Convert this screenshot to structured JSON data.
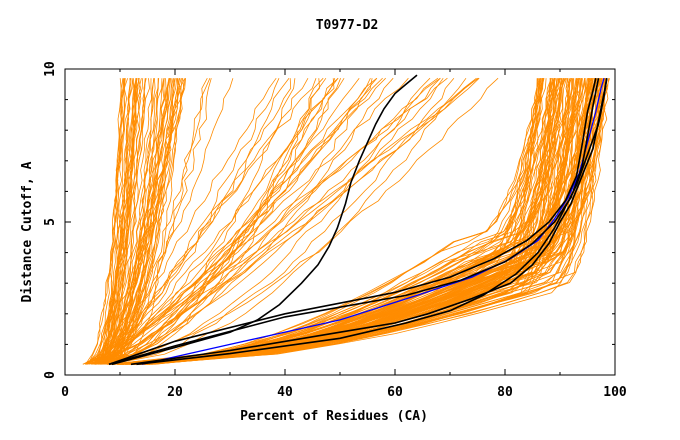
{
  "chart_data": {
    "type": "line",
    "title": "T0977-D2",
    "xlabel": "Percent of Residues (CA)",
    "ylabel": "Distance Cutoff, A",
    "xlim": [
      0,
      100
    ],
    "ylim": [
      0,
      10
    ],
    "x_ticks": [
      0,
      20,
      40,
      60,
      80,
      100
    ],
    "y_ticks": [
      0,
      5,
      10
    ],
    "x_tick_labels": [
      "0",
      "20",
      "40",
      "60",
      "80",
      "100"
    ],
    "y_tick_labels": [
      "0",
      "5",
      "10"
    ],
    "grid": false,
    "legend": "none",
    "colors": {
      "background_curves": "#ff8c00",
      "highlight": "#000000",
      "reference": "#0000ff",
      "axes": "#000000"
    },
    "highlight_series": [
      {
        "color": "#000000",
        "points": [
          [
            8.5,
            0.35
          ],
          [
            20,
            0.9
          ],
          [
            30,
            1.4
          ],
          [
            35,
            1.8
          ],
          [
            39,
            2.3
          ],
          [
            43,
            3.0
          ],
          [
            46,
            3.6
          ],
          [
            48,
            4.2
          ],
          [
            49.5,
            4.8
          ],
          [
            51,
            5.6
          ],
          [
            52,
            6.3
          ],
          [
            53.5,
            7.0
          ],
          [
            55,
            7.6
          ],
          [
            56.5,
            8.2
          ],
          [
            58,
            8.7
          ],
          [
            60,
            9.2
          ],
          [
            62,
            9.5
          ],
          [
            64,
            9.8
          ]
        ]
      },
      {
        "color": "#000000",
        "points": [
          [
            8,
            0.35
          ],
          [
            20,
            1.1
          ],
          [
            40,
            2.0
          ],
          [
            60,
            2.7
          ],
          [
            70,
            3.2
          ],
          [
            78,
            3.8
          ],
          [
            84,
            4.4
          ],
          [
            88,
            5.0
          ],
          [
            91,
            5.7
          ],
          [
            93,
            6.5
          ],
          [
            94,
            7.5
          ],
          [
            95,
            8.6
          ],
          [
            96,
            9.3
          ],
          [
            96.5,
            9.7
          ]
        ]
      },
      {
        "color": "#000000",
        "points": [
          [
            8,
            0.35
          ],
          [
            20,
            0.95
          ],
          [
            40,
            1.9
          ],
          [
            62,
            2.6
          ],
          [
            72,
            3.1
          ],
          [
            80,
            3.7
          ],
          [
            85,
            4.3
          ],
          [
            89,
            5.0
          ],
          [
            92,
            5.8
          ],
          [
            94,
            6.8
          ],
          [
            95,
            7.8
          ],
          [
            96,
            8.8
          ],
          [
            97,
            9.7
          ]
        ]
      },
      {
        "color": "#000000",
        "points": [
          [
            12,
            0.35
          ],
          [
            30,
            0.8
          ],
          [
            50,
            1.4
          ],
          [
            60,
            1.7
          ],
          [
            66,
            2.0
          ],
          [
            74,
            2.5
          ],
          [
            81,
            3.0
          ],
          [
            85,
            3.6
          ],
          [
            88,
            4.3
          ],
          [
            90,
            5.0
          ],
          [
            92,
            5.6
          ],
          [
            94,
            6.5
          ],
          [
            96,
            7.4
          ],
          [
            97,
            8.3
          ],
          [
            98,
            9.2
          ],
          [
            98.5,
            9.7
          ]
        ]
      },
      {
        "color": "#000000",
        "points": [
          [
            13,
            0.35
          ],
          [
            30,
            0.7
          ],
          [
            50,
            1.2
          ],
          [
            62,
            1.7
          ],
          [
            70,
            2.1
          ],
          [
            76,
            2.6
          ],
          [
            82,
            3.3
          ],
          [
            86,
            4.0
          ],
          [
            89,
            4.8
          ],
          [
            91,
            5.5
          ],
          [
            93,
            6.2
          ],
          [
            95,
            7.2
          ],
          [
            97,
            8.2
          ],
          [
            98,
            9.1
          ],
          [
            98.5,
            9.7
          ]
        ]
      }
    ],
    "reference_series": {
      "color": "#0000ff",
      "points": [
        [
          14,
          0.35
        ],
        [
          30,
          1.0
        ],
        [
          50,
          1.8
        ],
        [
          64,
          2.6
        ],
        [
          74,
          3.2
        ],
        [
          81,
          3.8
        ],
        [
          86,
          4.4
        ],
        [
          89,
          5.1
        ],
        [
          91.5,
          5.8
        ],
        [
          93.5,
          6.6
        ],
        [
          95,
          7.6
        ],
        [
          96.5,
          8.6
        ],
        [
          97.5,
          9.4
        ],
        [
          98,
          9.7
        ]
      ]
    },
    "background_curve_groups": [
      {
        "count": 60,
        "x_at_y0.35": [
          3,
          9
        ],
        "x_at_y9.7": [
          10,
          22
        ],
        "description_shape": "steep rise"
      },
      {
        "count": 45,
        "x_at_y0.35": [
          4,
          9
        ],
        "x_at_y9.7": [
          20,
          80
        ],
        "description_shape": "gradual rise"
      },
      {
        "count": 130,
        "x_at_y0.35": [
          8,
          16
        ],
        "x_at_y9.7": [
          86,
          99
        ],
        "description_shape": "hockey stick"
      }
    ]
  }
}
